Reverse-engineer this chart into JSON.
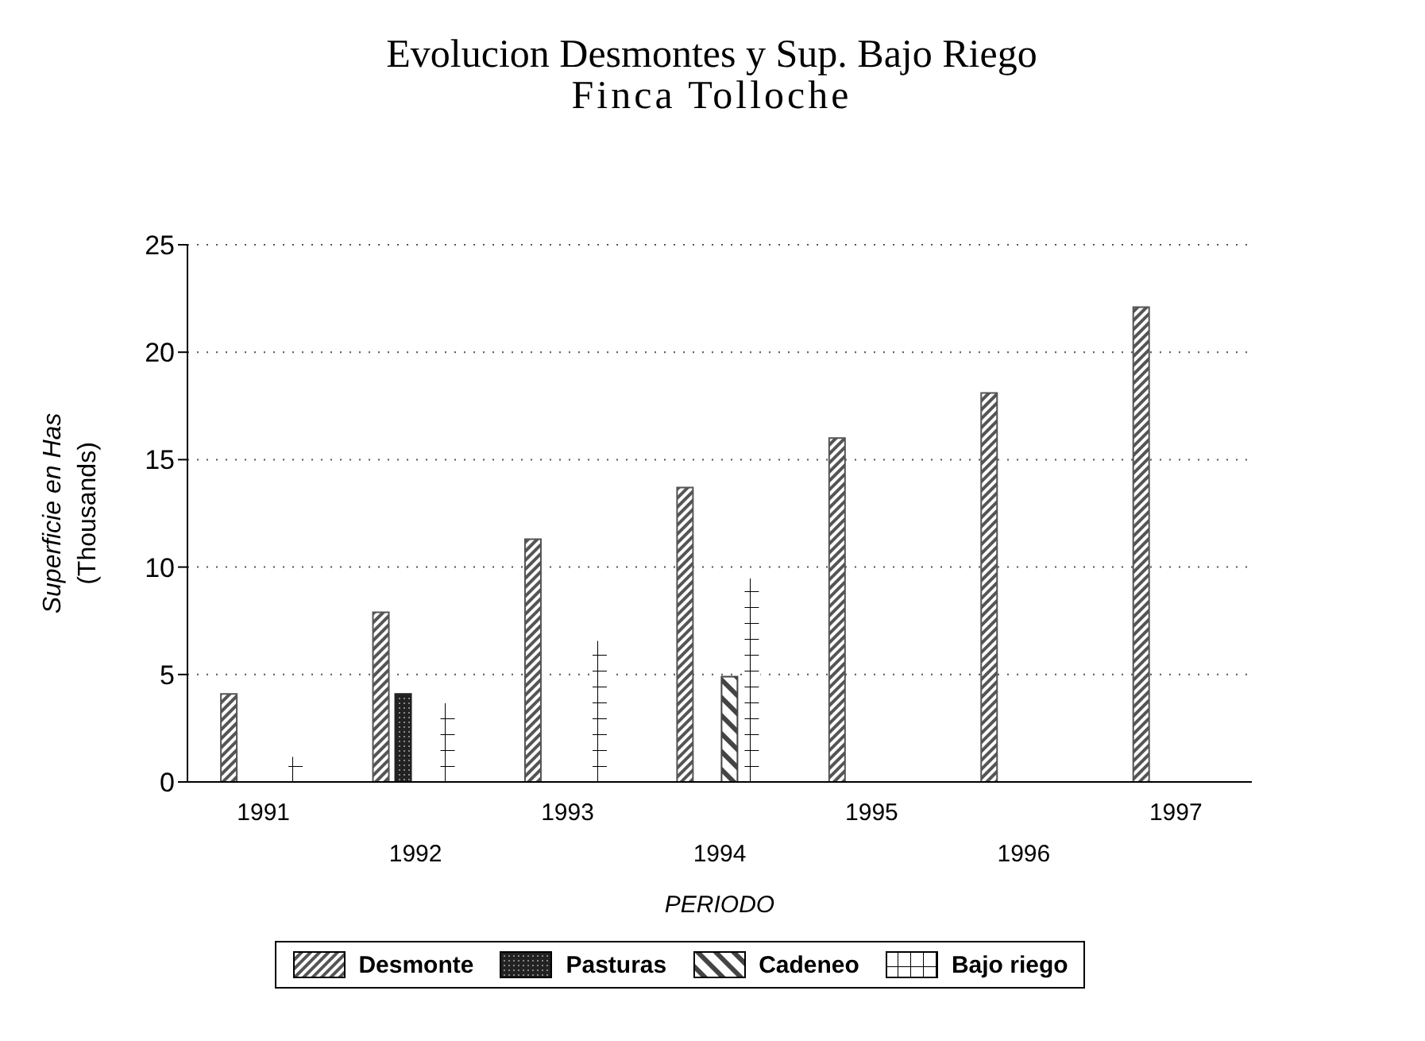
{
  "chart_data": {
    "type": "bar",
    "title": "Evolucion Desmontes y Sup. Bajo Riego",
    "subtitle": "Finca Tolloche",
    "xlabel": "PERIODO",
    "ylabel": "Superficie en Has\n(Thousands)",
    "categories": [
      "1991",
      "1992",
      "1993",
      "1994",
      "1995",
      "1996",
      "1997"
    ],
    "series": [
      {
        "name": "Desmonte",
        "color": "#555555",
        "values": [
          4.1,
          7.9,
          11.3,
          13.7,
          16,
          18.1,
          22.1
        ]
      },
      {
        "name": "Pasturas",
        "color": "#222222",
        "values": [
          null,
          4.1,
          null,
          null,
          null,
          null,
          null
        ]
      },
      {
        "name": "Cadeneo",
        "color": "#444444",
        "values": [
          null,
          null,
          null,
          4.9,
          null,
          null,
          null
        ]
      },
      {
        "name": "Bajo riego",
        "color": "#ffffff",
        "values": [
          1.2,
          3.7,
          6.6,
          9.5,
          null,
          null,
          null
        ]
      }
    ],
    "ylim": [
      0,
      25
    ],
    "yticks": [
      0,
      5,
      10,
      15,
      20,
      25
    ],
    "grid": "y",
    "legend": "bottom"
  }
}
